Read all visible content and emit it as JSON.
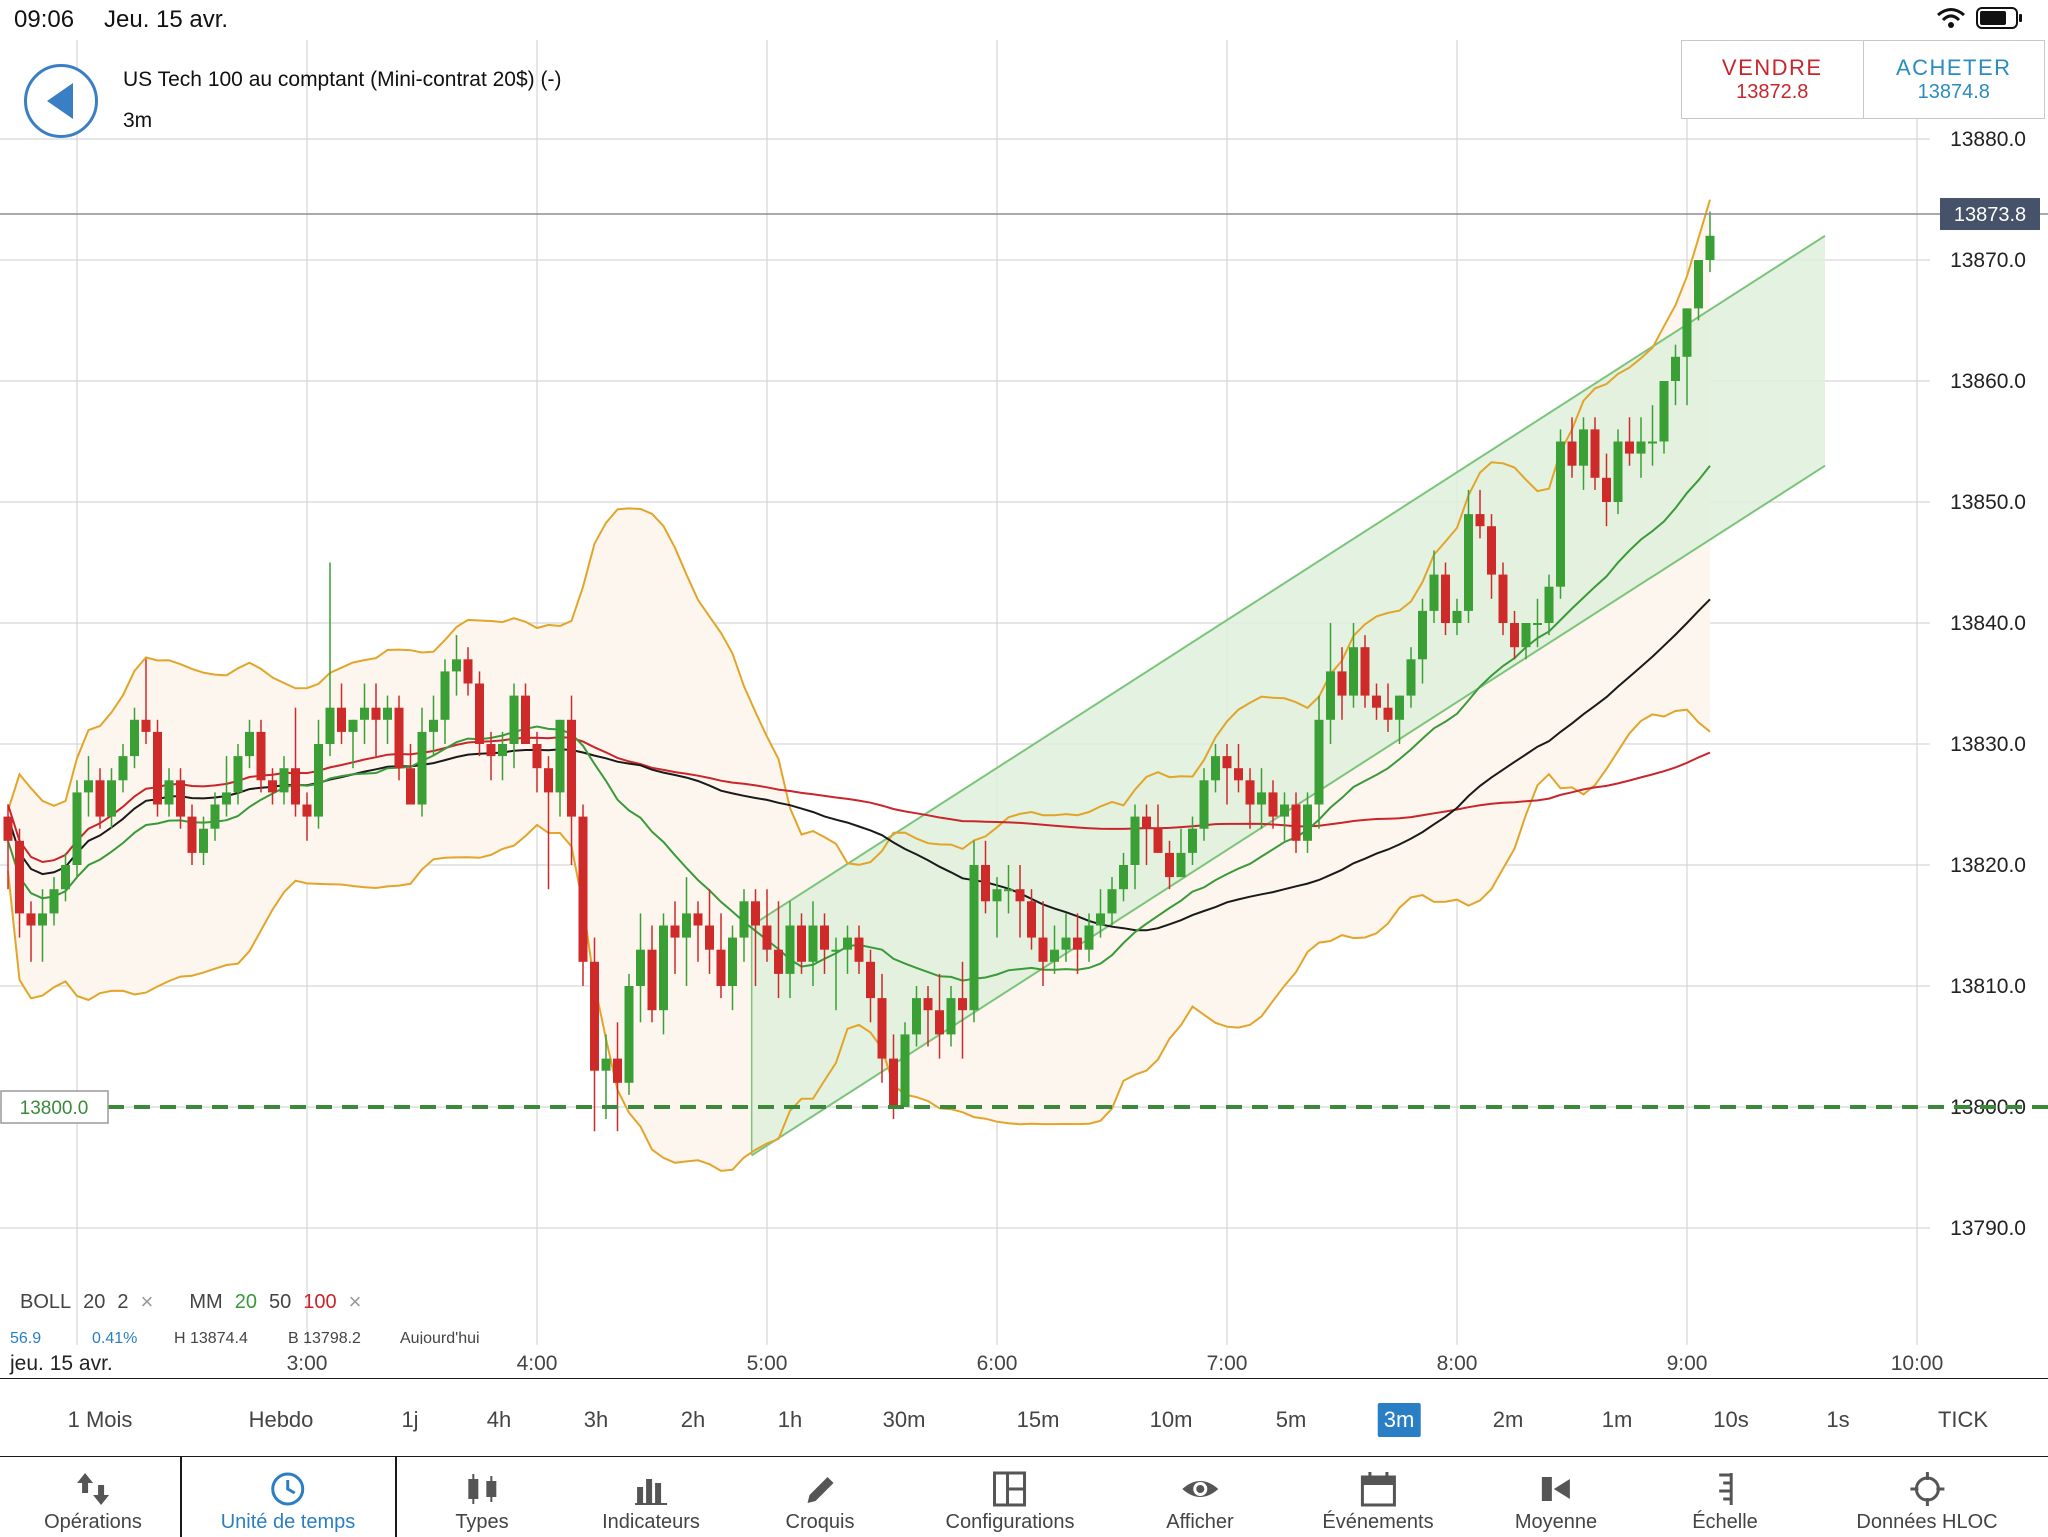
{
  "status_bar": {
    "time": "09:06",
    "date": "Jeu. 15 avr."
  },
  "header": {
    "instrument": "US Tech 100 au comptant (Mini-contrat 20$) (-)",
    "timeframe": "3m"
  },
  "trade": {
    "sell_label": "VENDRE",
    "sell_price": "13872.8",
    "buy_label": "ACHETER",
    "buy_price": "13874.8"
  },
  "chart_data": {
    "type": "candlestick",
    "instrument": "US Tech 100",
    "interval": "3m",
    "y_ticks": [
      "13880.0",
      "13870.0",
      "13860.0",
      "13850.0",
      "13840.0",
      "13830.0",
      "13820.0",
      "13810.0",
      "13800.0",
      "13790.0"
    ],
    "y_range": [
      13790,
      13880
    ],
    "x_ticks": [
      "3:00",
      "4:00",
      "5:00",
      "6:00",
      "7:00",
      "8:00",
      "9:00",
      "10:00"
    ],
    "x_date_label": "jeu. 15 avr.",
    "current_price_label": "13873.8",
    "current_price": 13873.8,
    "horizontal_line_label": "13800.0",
    "horizontal_line": 13800.0,
    "channel": {
      "start_time": "4:56",
      "end_time": "9:36",
      "upper": [
        13815,
        13872
      ],
      "lower": [
        13796,
        13853
      ]
    },
    "candles": [
      [
        13824,
        13825,
        13818,
        13822
      ],
      [
        13822,
        13823,
        13814,
        13816
      ],
      [
        13816,
        13817,
        13812,
        13815
      ],
      [
        13815,
        13818,
        13812,
        13816
      ],
      [
        13816,
        13819,
        13815,
        13818
      ],
      [
        13818,
        13821,
        13817,
        13820
      ],
      [
        13820,
        13827,
        13819,
        13826
      ],
      [
        13826,
        13829,
        13824,
        13827
      ],
      [
        13827,
        13828,
        13823,
        13824
      ],
      [
        13824,
        13828,
        13823,
        13827
      ],
      [
        13827,
        13830,
        13826,
        13829
      ],
      [
        13829,
        13833,
        13828,
        13832
      ],
      [
        13832,
        13837,
        13830,
        13831
      ],
      [
        13831,
        13832,
        13824,
        13825
      ],
      [
        13825,
        13828,
        13824,
        13827
      ],
      [
        13827,
        13828,
        13823,
        13824
      ],
      [
        13824,
        13825,
        13820,
        13821
      ],
      [
        13821,
        13824,
        13820,
        13823
      ],
      [
        13823,
        13826,
        13822,
        13825
      ],
      [
        13825,
        13829,
        13824,
        13826
      ],
      [
        13826,
        13830,
        13825,
        13829
      ],
      [
        13829,
        13832,
        13828,
        13831
      ],
      [
        13831,
        13832,
        13826,
        13827
      ],
      [
        13827,
        13828,
        13825,
        13826
      ],
      [
        13826,
        13829,
        13825,
        13828
      ],
      [
        13828,
        13833,
        13824,
        13825
      ],
      [
        13825,
        13826,
        13822,
        13824
      ],
      [
        13824,
        13832,
        13823,
        13830
      ],
      [
        13830,
        13845,
        13829,
        13833
      ],
      [
        13833,
        13835,
        13830,
        13831
      ],
      [
        13831,
        13832,
        13828,
        13832
      ],
      [
        13832,
        13835,
        13830,
        13833
      ],
      [
        13833,
        13835,
        13829,
        13832
      ],
      [
        13832,
        13834,
        13830,
        13833
      ],
      [
        13833,
        13834,
        13827,
        13828
      ],
      [
        13828,
        13830,
        13825,
        13825
      ],
      [
        13825,
        13833,
        13824,
        13831
      ],
      [
        13831,
        13834,
        13829,
        13832
      ],
      [
        13832,
        13837,
        13830,
        13836
      ],
      [
        13836,
        13839,
        13834,
        13837
      ],
      [
        13837,
        13838,
        13834,
        13835
      ],
      [
        13835,
        13836,
        13829,
        13830
      ],
      [
        13830,
        13831,
        13827,
        13829
      ],
      [
        13829,
        13831,
        13827,
        13830
      ],
      [
        13830,
        13835,
        13828,
        13834
      ],
      [
        13834,
        13835,
        13830,
        13830
      ],
      [
        13830,
        13831,
        13826,
        13828
      ],
      [
        13828,
        13829,
        13818,
        13826
      ],
      [
        13826,
        13832,
        13824,
        13832
      ],
      [
        13832,
        13834,
        13820,
        13824
      ],
      [
        13824,
        13825,
        13810,
        13812
      ],
      [
        13812,
        13814,
        13798,
        13803
      ],
      [
        13803,
        13806,
        13799,
        13804
      ],
      [
        13804,
        13807,
        13798,
        13802
      ],
      [
        13802,
        13811,
        13801,
        13810
      ],
      [
        13810,
        13816,
        13807,
        13813
      ],
      [
        13813,
        13815,
        13807,
        13808
      ],
      [
        13808,
        13816,
        13806,
        13815
      ],
      [
        13815,
        13817,
        13811,
        13814
      ],
      [
        13814,
        13819,
        13810,
        13816
      ],
      [
        13816,
        13817,
        13812,
        13815
      ],
      [
        13815,
        13818,
        13811,
        13813
      ],
      [
        13813,
        13816,
        13809,
        13810
      ],
      [
        13810,
        13815,
        13808,
        13814
      ],
      [
        13814,
        13818,
        13812,
        13817
      ],
      [
        13817,
        13818,
        13810,
        13815
      ],
      [
        13815,
        13818,
        13812,
        13813
      ],
      [
        13813,
        13817,
        13809,
        13811
      ],
      [
        13811,
        13817,
        13809,
        13815
      ],
      [
        13815,
        13816,
        13811,
        13812
      ],
      [
        13812,
        13817,
        13810,
        13815
      ],
      [
        13815,
        13816,
        13811,
        13813
      ],
      [
        13813,
        13814,
        13808,
        13813
      ],
      [
        13813,
        13815,
        13811,
        13814
      ],
      [
        13814,
        13815,
        13811,
        13812
      ],
      [
        13812,
        13813,
        13807,
        13809
      ],
      [
        13809,
        13811,
        13802,
        13804
      ],
      [
        13804,
        13806,
        13799,
        13800
      ],
      [
        13800,
        13807,
        13800,
        13806
      ],
      [
        13806,
        13810,
        13805,
        13809
      ],
      [
        13809,
        13810,
        13805,
        13808
      ],
      [
        13808,
        13811,
        13804,
        13806
      ],
      [
        13806,
        13810,
        13805,
        13809
      ],
      [
        13809,
        13812,
        13804,
        13808
      ],
      [
        13808,
        13822,
        13807,
        13820
      ],
      [
        13820,
        13822,
        13816,
        13817
      ],
      [
        13817,
        13819,
        13814,
        13818
      ],
      [
        13818,
        13820,
        13816,
        13818
      ],
      [
        13818,
        13820,
        13814,
        13817
      ],
      [
        13817,
        13818,
        13813,
        13814
      ],
      [
        13814,
        13817,
        13810,
        13812
      ],
      [
        13812,
        13815,
        13811,
        13813
      ],
      [
        13813,
        13816,
        13812,
        13814
      ],
      [
        13814,
        13816,
        13811,
        13813
      ],
      [
        13813,
        13816,
        13812,
        13815
      ],
      [
        13815,
        13818,
        13814,
        13816
      ],
      [
        13816,
        13819,
        13815,
        13818
      ],
      [
        13818,
        13821,
        13817,
        13820
      ],
      [
        13820,
        13825,
        13818,
        13824
      ],
      [
        13824,
        13825,
        13820,
        13823
      ],
      [
        13823,
        13825,
        13821,
        13821
      ],
      [
        13821,
        13822,
        13818,
        13819
      ],
      [
        13819,
        13823,
        13819,
        13821
      ],
      [
        13821,
        13824,
        13820,
        13823
      ],
      [
        13823,
        13828,
        13822,
        13827
      ],
      [
        13827,
        13830,
        13826,
        13829
      ],
      [
        13829,
        13830,
        13825,
        13828
      ],
      [
        13828,
        13830,
        13826,
        13827
      ],
      [
        13827,
        13828,
        13823,
        13825
      ],
      [
        13825,
        13828,
        13823,
        13826
      ],
      [
        13826,
        13827,
        13823,
        13824
      ],
      [
        13824,
        13826,
        13822,
        13825
      ],
      [
        13825,
        13826,
        13821,
        13822
      ],
      [
        13822,
        13826,
        13821,
        13825
      ],
      [
        13825,
        13834,
        13823,
        13832
      ],
      [
        13832,
        13840,
        13830,
        13836
      ],
      [
        13836,
        13838,
        13832,
        13834
      ],
      [
        13834,
        13840,
        13833,
        13838
      ],
      [
        13838,
        13839,
        13833,
        13834
      ],
      [
        13834,
        13835,
        13832,
        13833
      ],
      [
        13833,
        13835,
        13831,
        13832
      ],
      [
        13832,
        13834,
        13830,
        13834
      ],
      [
        13834,
        13838,
        13833,
        13837
      ],
      [
        13837,
        13842,
        13835,
        13841
      ],
      [
        13841,
        13846,
        13840,
        13844
      ],
      [
        13844,
        13845,
        13839,
        13840
      ],
      [
        13840,
        13842,
        13839,
        13841
      ],
      [
        13841,
        13851,
        13840,
        13849
      ],
      [
        13849,
        13851,
        13847,
        13848
      ],
      [
        13848,
        13849,
        13842,
        13844
      ],
      [
        13844,
        13845,
        13839,
        13840
      ],
      [
        13840,
        13841,
        13837,
        13838
      ],
      [
        13838,
        13840,
        13837,
        13840
      ],
      [
        13840,
        13842,
        13838,
        13840
      ],
      [
        13840,
        13844,
        13839,
        13843
      ],
      [
        13843,
        13856,
        13842,
        13855
      ],
      [
        13855,
        13857,
        13852,
        13853
      ],
      [
        13853,
        13857,
        13851,
        13856
      ],
      [
        13856,
        13857,
        13851,
        13852
      ],
      [
        13852,
        13854,
        13848,
        13850
      ],
      [
        13850,
        13856,
        13849,
        13855
      ],
      [
        13855,
        13857,
        13853,
        13854
      ],
      [
        13854,
        13857,
        13852,
        13855
      ],
      [
        13855,
        13858,
        13853,
        13855
      ],
      [
        13855,
        13860,
        13854,
        13860
      ],
      [
        13860,
        13863,
        13858,
        13862
      ],
      [
        13862,
        13866,
        13858,
        13866
      ],
      [
        13866,
        13870,
        13865,
        13870
      ],
      [
        13870,
        13874,
        13869,
        13872
      ]
    ],
    "series": [
      {
        "name": "BOLL 20 2",
        "color": "#e2a52a"
      },
      {
        "name": "MM 20",
        "color": "#3a9a3a"
      },
      {
        "name": "MM 50",
        "color": "#1a1a1a"
      },
      {
        "name": "MM 100",
        "color": "#c8262b"
      }
    ]
  },
  "legend": {
    "boll_label": "BOLL",
    "boll_period": "20",
    "boll_dev": "2",
    "boll_close": "×",
    "mm_label": "MM",
    "mm_20": "20",
    "mm_50": "50",
    "mm_100": "100",
    "mm_close": "×"
  },
  "partial_info": {
    "a": "56.9",
    "b": "0.41%",
    "c": "H 13874.4",
    "d": "B 13798.2",
    "e": "Aujourd'hui"
  },
  "timeframes": [
    "1 Mois",
    "Hebdo",
    "1j",
    "4h",
    "3h",
    "2h",
    "1h",
    "30m",
    "15m",
    "10m",
    "5m",
    "3m",
    "2m",
    "1m",
    "10s",
    "1s",
    "TICK"
  ],
  "timeframe_active": "3m",
  "bottom_nav": [
    {
      "label": "Opérations",
      "icon": "arrows-up-down-icon"
    },
    {
      "label": "Unité de temps",
      "icon": "clock-icon"
    },
    {
      "label": "Types",
      "icon": "candles-icon"
    },
    {
      "label": "Indicateurs",
      "icon": "bar-chart-icon"
    },
    {
      "label": "Croquis",
      "icon": "pencil-icon"
    },
    {
      "label": "Configurations",
      "icon": "layout-icon"
    },
    {
      "label": "Afficher",
      "icon": "eye-icon"
    },
    {
      "label": "Événements",
      "icon": "calendar-icon"
    },
    {
      "label": "Moyenne",
      "icon": "average-icon"
    },
    {
      "label": "Échelle",
      "icon": "scale-icon"
    },
    {
      "label": "Données HLOC",
      "icon": "crosshair-icon"
    }
  ],
  "colors": {
    "up": "#3aa035",
    "down": "#cf2a2a",
    "accent": "#2a7fc4",
    "channel_fill": "#dff0dc",
    "band_fill": "#fdf6ee"
  }
}
